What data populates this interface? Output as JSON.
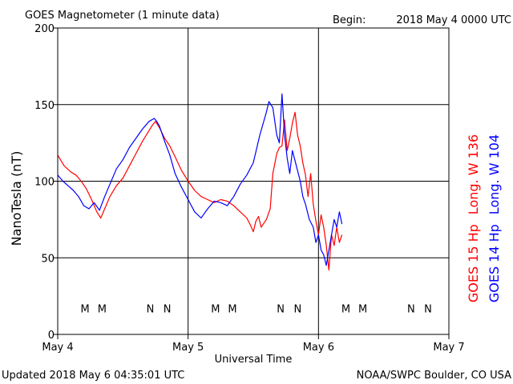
{
  "chart_data": {
    "type": "line",
    "title": "GOES Magnetometer (1 minute data)",
    "begin_label": "Begin:",
    "begin_value": "2018 May 4 0000 UTC",
    "xlabel": "Universal Time",
    "ylabel": "NanoTesla (nT)",
    "x_unit": "days since 2018 May 4 0000 UTC",
    "xlim": [
      0,
      3
    ],
    "ylim": [
      0,
      200
    ],
    "x_ticks": [
      {
        "value": 0,
        "label": "May 4"
      },
      {
        "value": 1,
        "label": "May 5"
      },
      {
        "value": 2,
        "label": "May 6"
      },
      {
        "value": 3,
        "label": "May 7"
      }
    ],
    "y_ticks": [
      {
        "value": 0,
        "label": "0"
      },
      {
        "value": 50,
        "label": "50"
      },
      {
        "value": 100,
        "label": "100"
      },
      {
        "value": 150,
        "label": "150"
      },
      {
        "value": 200,
        "label": "200"
      }
    ],
    "grid": true,
    "series": [
      {
        "name": "GOES 15 Hp  Long. W 136",
        "color": "#ff0000",
        "x": [
          0.0,
          0.05,
          0.1,
          0.14,
          0.18,
          0.22,
          0.26,
          0.3,
          0.33,
          0.36,
          0.4,
          0.45,
          0.5,
          0.55,
          0.6,
          0.65,
          0.7,
          0.73,
          0.75,
          0.78,
          0.82,
          0.86,
          0.9,
          0.95,
          1.0,
          1.05,
          1.1,
          1.15,
          1.2,
          1.25,
          1.3,
          1.35,
          1.4,
          1.45,
          1.48,
          1.5,
          1.52,
          1.54,
          1.56,
          1.6,
          1.63,
          1.65,
          1.68,
          1.7,
          1.72,
          1.74,
          1.76,
          1.78,
          1.8,
          1.82,
          1.84,
          1.86,
          1.88,
          1.9,
          1.92,
          1.94,
          1.96,
          1.98,
          2.0,
          2.02,
          2.04,
          2.06,
          2.08,
          2.1,
          2.12,
          2.14,
          2.16,
          2.18
        ],
        "y": [
          117,
          110,
          106,
          104,
          100,
          95,
          88,
          80,
          76,
          82,
          90,
          97,
          102,
          110,
          118,
          126,
          133,
          137,
          139,
          135,
          128,
          123,
          116,
          107,
          100,
          94,
          90,
          88,
          86,
          88,
          87,
          84,
          80,
          76,
          71,
          67,
          74,
          77,
          70,
          75,
          82,
          105,
          118,
          122,
          123,
          140,
          120,
          128,
          138,
          145,
          130,
          123,
          112,
          104,
          90,
          105,
          85,
          74,
          65,
          78,
          70,
          58,
          42,
          65,
          58,
          70,
          60,
          65
        ]
      },
      {
        "name": "GOES 14 Hp  Long. W 104",
        "color": "#0000ff",
        "x": [
          0.0,
          0.04,
          0.08,
          0.12,
          0.16,
          0.2,
          0.24,
          0.28,
          0.32,
          0.36,
          0.4,
          0.45,
          0.5,
          0.55,
          0.6,
          0.65,
          0.7,
          0.74,
          0.76,
          0.78,
          0.82,
          0.86,
          0.9,
          0.95,
          1.0,
          1.05,
          1.1,
          1.15,
          1.2,
          1.25,
          1.3,
          1.35,
          1.4,
          1.45,
          1.5,
          1.55,
          1.6,
          1.62,
          1.65,
          1.68,
          1.7,
          1.72,
          1.74,
          1.76,
          1.78,
          1.8,
          1.83,
          1.86,
          1.88,
          1.9,
          1.93,
          1.96,
          1.98,
          2.0,
          2.02,
          2.04,
          2.06,
          2.08,
          2.1,
          2.12,
          2.14,
          2.16,
          2.18
        ],
        "y": [
          104,
          100,
          97,
          94,
          90,
          84,
          82,
          86,
          81,
          90,
          98,
          108,
          114,
          122,
          128,
          134,
          139,
          141,
          139,
          136,
          126,
          117,
          105,
          96,
          88,
          80,
          76,
          82,
          87,
          86,
          84,
          90,
          98,
          104,
          112,
          130,
          145,
          152,
          148,
          130,
          125,
          157,
          130,
          115,
          105,
          120,
          110,
          100,
          90,
          85,
          75,
          70,
          60,
          65,
          55,
          52,
          45,
          55,
          65,
          75,
          70,
          80,
          72
        ]
      }
    ],
    "legend": [
      {
        "prefix": "GOES 15 Hp",
        "suffix": "Long. W 136",
        "color": "#ff0000",
        "placement": "right-outer"
      },
      {
        "prefix": "GOES 14 Hp",
        "suffix": "Long. W 104",
        "color": "#0000ff",
        "placement": "right-outer"
      }
    ],
    "markers": [
      {
        "x": 0.21,
        "label": "M",
        "color": "#0000ff"
      },
      {
        "x": 0.34,
        "label": "M",
        "color": "#ff0000"
      },
      {
        "x": 0.71,
        "label": "N",
        "color": "#0000ff"
      },
      {
        "x": 0.84,
        "label": "N",
        "color": "#ff0000"
      },
      {
        "x": 1.21,
        "label": "M",
        "color": "#0000ff"
      },
      {
        "x": 1.34,
        "label": "M",
        "color": "#ff0000"
      },
      {
        "x": 1.71,
        "label": "N",
        "color": "#0000ff"
      },
      {
        "x": 1.84,
        "label": "N",
        "color": "#ff0000"
      },
      {
        "x": 2.21,
        "label": "M",
        "color": "#0000ff"
      },
      {
        "x": 2.34,
        "label": "M",
        "color": "#ff0000"
      },
      {
        "x": 2.71,
        "label": "N",
        "color": "#0000ff"
      },
      {
        "x": 2.84,
        "label": "N",
        "color": "#ff0000"
      }
    ],
    "marker_level": 17
  },
  "footer": {
    "updated": "Updated 2018 May  6 04:35:01 UTC",
    "source": "NOAA/SWPC Boulder, CO USA"
  }
}
